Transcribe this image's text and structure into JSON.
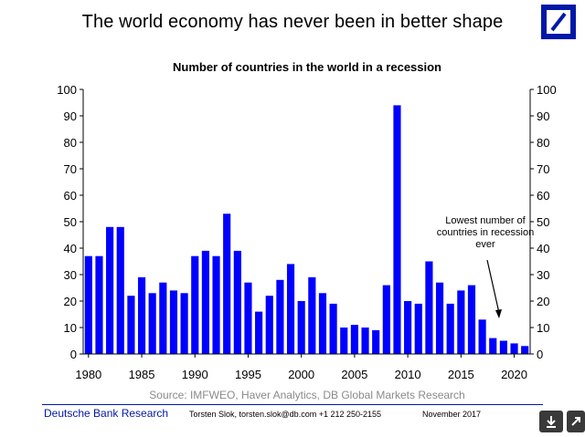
{
  "header": {
    "title": "The world economy has never been in better shape",
    "logo_icon": "deutsche-bank-slash-logo"
  },
  "chart_data": {
    "type": "bar",
    "title": "Number of countries in the world in a recession",
    "xlabel": "",
    "ylabel": "",
    "ylim": [
      0,
      100
    ],
    "yticks": [
      "0",
      "10",
      "20",
      "30",
      "40",
      "50",
      "60",
      "70",
      "80",
      "90",
      "100"
    ],
    "xticks": [
      "1980",
      "1985",
      "1990",
      "1995",
      "2000",
      "2005",
      "2010",
      "2015",
      "2020"
    ],
    "bar_color": "#0000ff",
    "x": [
      1980,
      1981,
      1982,
      1983,
      1984,
      1985,
      1986,
      1987,
      1988,
      1989,
      1990,
      1991,
      1992,
      1993,
      1994,
      1995,
      1996,
      1997,
      1998,
      1999,
      2000,
      2001,
      2002,
      2003,
      2004,
      2005,
      2006,
      2007,
      2008,
      2009,
      2010,
      2011,
      2012,
      2013,
      2014,
      2015,
      2016,
      2017,
      2018,
      2019,
      2020,
      2021
    ],
    "values": [
      37,
      37,
      48,
      48,
      22,
      29,
      23,
      27,
      24,
      23,
      37,
      39,
      37,
      53,
      39,
      27,
      16,
      22,
      28,
      34,
      20,
      29,
      23,
      19,
      10,
      11,
      10,
      9,
      26,
      94,
      20,
      19,
      35,
      27,
      19,
      24,
      26,
      13,
      6,
      5,
      4,
      3
    ],
    "annotation": "Lowest number of countries in recession ever",
    "source": "Source: IMFWEO, Haver Analytics, DB Global Markets Research"
  },
  "footer": {
    "brand": "Deutsche Bank Research",
    "contact": "Torsten Slok, torsten.slok@db.com  +1 212 250-2155",
    "date": "November  2017",
    "download_icon": "download-arrow-icon",
    "expand_icon": "expand-icon"
  }
}
